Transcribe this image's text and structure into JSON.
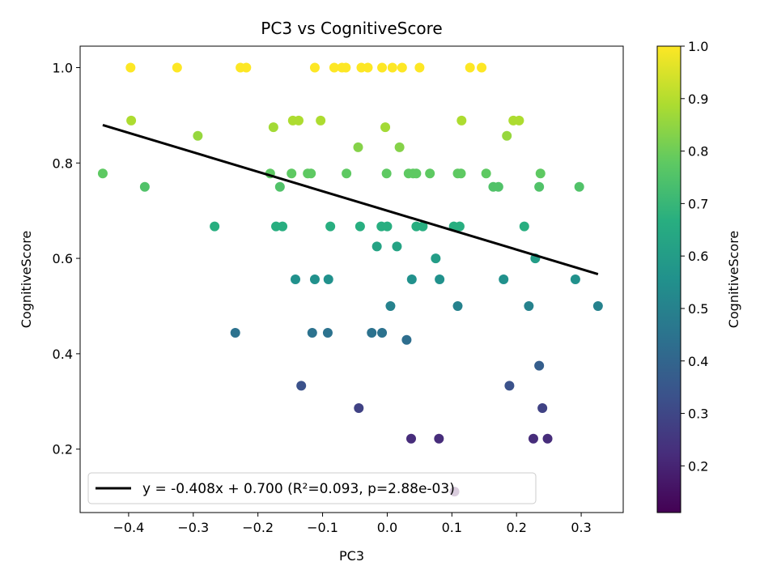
{
  "chart_data": {
    "type": "scatter",
    "title": "PC3 vs CognitiveScore",
    "xlabel": "PC3",
    "ylabel": "CognitiveScore",
    "xlim": [
      -0.475,
      0.365
    ],
    "ylim": [
      0.067,
      1.045
    ],
    "xticks": [
      -0.4,
      -0.3,
      -0.2,
      -0.1,
      0.0,
      0.1,
      0.2,
      0.3
    ],
    "xtick_labels": [
      "−0.4",
      "−0.3",
      "−0.2",
      "−0.1",
      "0.0",
      "0.1",
      "0.2",
      "0.3"
    ],
    "yticks": [
      0.2,
      0.4,
      0.6,
      0.8,
      1.0
    ],
    "ytick_labels": [
      "0.2",
      "0.4",
      "0.6",
      "0.8",
      "1.0"
    ],
    "colorbar": {
      "label": "CognitiveScore",
      "colormap": "viridis",
      "range": [
        0.111,
        1.0
      ],
      "ticks": [
        0.2,
        0.3,
        0.4,
        0.5,
        0.6,
        0.7,
        0.8,
        0.9,
        1.0
      ],
      "tick_labels": [
        "0.2",
        "0.3",
        "0.4",
        "0.5",
        "0.6",
        "0.7",
        "0.8",
        "0.9",
        "1.0"
      ]
    },
    "fit_line": {
      "slope": -0.408,
      "intercept": 0.7,
      "x_range": [
        -0.44,
        0.326
      ],
      "color": "#000000"
    },
    "legend": {
      "position": "lower-left",
      "entries": [
        "y = -0.408x + 0.700 (R²=0.093, p=2.88e-03)"
      ]
    },
    "grid": false,
    "points": [
      {
        "x": -0.397,
        "y": 1.0
      },
      {
        "x": -0.325,
        "y": 1.0
      },
      {
        "x": -0.227,
        "y": 1.0
      },
      {
        "x": -0.218,
        "y": 1.0
      },
      {
        "x": -0.112,
        "y": 1.0
      },
      {
        "x": -0.082,
        "y": 1.0
      },
      {
        "x": -0.07,
        "y": 1.0
      },
      {
        "x": -0.064,
        "y": 1.0
      },
      {
        "x": -0.04,
        "y": 1.0
      },
      {
        "x": -0.03,
        "y": 1.0
      },
      {
        "x": -0.008,
        "y": 1.0
      },
      {
        "x": 0.008,
        "y": 1.0
      },
      {
        "x": 0.023,
        "y": 1.0
      },
      {
        "x": 0.05,
        "y": 1.0
      },
      {
        "x": 0.128,
        "y": 1.0
      },
      {
        "x": 0.146,
        "y": 1.0
      },
      {
        "x": -0.396,
        "y": 0.889
      },
      {
        "x": -0.146,
        "y": 0.889
      },
      {
        "x": -0.137,
        "y": 0.889
      },
      {
        "x": -0.103,
        "y": 0.889
      },
      {
        "x": 0.115,
        "y": 0.889
      },
      {
        "x": 0.195,
        "y": 0.889
      },
      {
        "x": 0.204,
        "y": 0.889
      },
      {
        "x": -0.293,
        "y": 0.857
      },
      {
        "x": 0.185,
        "y": 0.857
      },
      {
        "x": -0.176,
        "y": 0.875
      },
      {
        "x": -0.003,
        "y": 0.875
      },
      {
        "x": -0.045,
        "y": 0.833
      },
      {
        "x": 0.019,
        "y": 0.833
      },
      {
        "x": -0.44,
        "y": 0.778
      },
      {
        "x": -0.181,
        "y": 0.778
      },
      {
        "x": -0.148,
        "y": 0.778
      },
      {
        "x": -0.123,
        "y": 0.778
      },
      {
        "x": -0.118,
        "y": 0.778
      },
      {
        "x": -0.063,
        "y": 0.778
      },
      {
        "x": -0.001,
        "y": 0.778
      },
      {
        "x": 0.033,
        "y": 0.778
      },
      {
        "x": 0.04,
        "y": 0.778
      },
      {
        "x": 0.045,
        "y": 0.778
      },
      {
        "x": 0.066,
        "y": 0.778
      },
      {
        "x": 0.109,
        "y": 0.778
      },
      {
        "x": 0.114,
        "y": 0.778
      },
      {
        "x": 0.153,
        "y": 0.778
      },
      {
        "x": 0.237,
        "y": 0.778
      },
      {
        "x": -0.375,
        "y": 0.75
      },
      {
        "x": -0.166,
        "y": 0.75
      },
      {
        "x": 0.164,
        "y": 0.75
      },
      {
        "x": 0.172,
        "y": 0.75
      },
      {
        "x": 0.235,
        "y": 0.75
      },
      {
        "x": 0.297,
        "y": 0.75
      },
      {
        "x": -0.267,
        "y": 0.667
      },
      {
        "x": -0.172,
        "y": 0.667
      },
      {
        "x": -0.162,
        "y": 0.667
      },
      {
        "x": -0.088,
        "y": 0.667
      },
      {
        "x": -0.042,
        "y": 0.667
      },
      {
        "x": -0.009,
        "y": 0.667
      },
      {
        "x": 0.0,
        "y": 0.667
      },
      {
        "x": 0.045,
        "y": 0.667
      },
      {
        "x": 0.055,
        "y": 0.667
      },
      {
        "x": 0.103,
        "y": 0.667
      },
      {
        "x": 0.112,
        "y": 0.667
      },
      {
        "x": 0.212,
        "y": 0.667
      },
      {
        "x": -0.016,
        "y": 0.625
      },
      {
        "x": 0.015,
        "y": 0.625
      },
      {
        "x": 0.075,
        "y": 0.6
      },
      {
        "x": 0.229,
        "y": 0.6
      },
      {
        "x": -0.142,
        "y": 0.556
      },
      {
        "x": -0.112,
        "y": 0.556
      },
      {
        "x": -0.091,
        "y": 0.556
      },
      {
        "x": 0.038,
        "y": 0.556
      },
      {
        "x": 0.081,
        "y": 0.556
      },
      {
        "x": 0.18,
        "y": 0.556
      },
      {
        "x": 0.291,
        "y": 0.556
      },
      {
        "x": 0.005,
        "y": 0.5
      },
      {
        "x": 0.109,
        "y": 0.5
      },
      {
        "x": 0.219,
        "y": 0.5
      },
      {
        "x": 0.326,
        "y": 0.5
      },
      {
        "x": -0.235,
        "y": 0.444
      },
      {
        "x": -0.116,
        "y": 0.444
      },
      {
        "x": -0.092,
        "y": 0.444
      },
      {
        "x": -0.024,
        "y": 0.444
      },
      {
        "x": -0.008,
        "y": 0.444
      },
      {
        "x": 0.03,
        "y": 0.429
      },
      {
        "x": 0.235,
        "y": 0.375
      },
      {
        "x": -0.133,
        "y": 0.333
      },
      {
        "x": 0.189,
        "y": 0.333
      },
      {
        "x": -0.044,
        "y": 0.286
      },
      {
        "x": 0.24,
        "y": 0.286
      },
      {
        "x": 0.037,
        "y": 0.222
      },
      {
        "x": 0.08,
        "y": 0.222
      },
      {
        "x": 0.226,
        "y": 0.222
      },
      {
        "x": 0.248,
        "y": 0.222
      },
      {
        "x": 0.104,
        "y": 0.111
      }
    ]
  }
}
